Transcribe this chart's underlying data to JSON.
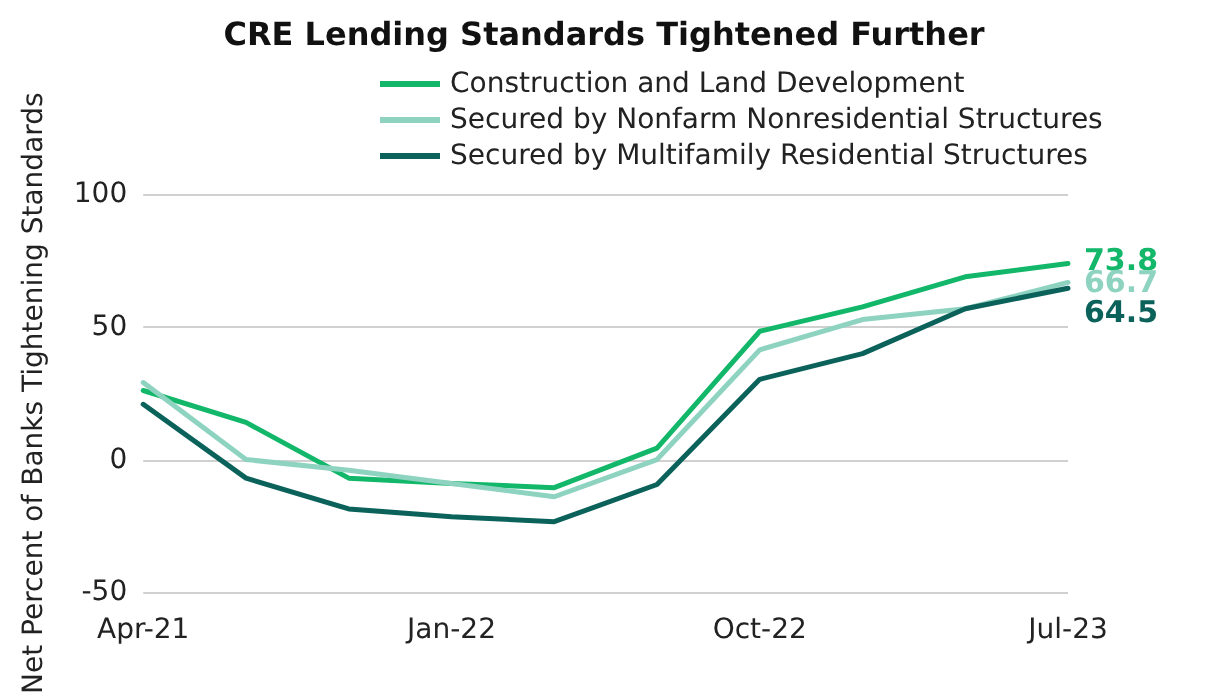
{
  "chart_data": {
    "type": "line",
    "title": "CRE Lending Standards Tightened Further",
    "ylabel": "Net Percent of Banks Tightening Standards",
    "categories": [
      "Apr-21",
      null,
      null,
      "Jan-22",
      null,
      null,
      "Oct-22",
      null,
      null,
      "Jul-23"
    ],
    "series": [
      {
        "name": "Construction and Land Development",
        "color": "#12b76a",
        "values": [
          26,
          14,
          -7,
          -9,
          -10.6,
          4.3,
          48.3,
          57.5,
          68.8,
          73.8
        ],
        "value_labels": [
          null,
          null,
          null,
          null,
          null,
          null,
          null,
          null,
          null,
          "73.8"
        ]
      },
      {
        "name": "Secured by Nonfarm Nonresidential Structures",
        "color": "#8ed3c0",
        "values": [
          29,
          0,
          -4,
          -9,
          -14,
          0,
          41.3,
          52.7,
          56.8,
          66.7
        ],
        "value_labels": [
          null,
          null,
          null,
          null,
          null,
          null,
          null,
          null,
          null,
          "66.7"
        ]
      },
      {
        "name": "Secured by Multifamily Residential Structures",
        "color": "#0a625a",
        "values": [
          20.8,
          -7,
          -18.6,
          -21.5,
          -23.4,
          -9.4,
          30.2,
          39.9,
          56.8,
          64.5
        ],
        "value_labels": [
          null,
          null,
          null,
          null,
          null,
          null,
          null,
          null,
          null,
          "64.5"
        ]
      }
    ],
    "ylim": [
      -50,
      100
    ],
    "yticks": [
      -50,
      0,
      50,
      100
    ],
    "grid": "y",
    "legend": "top",
    "marker": "none",
    "line_style": "solid"
  }
}
